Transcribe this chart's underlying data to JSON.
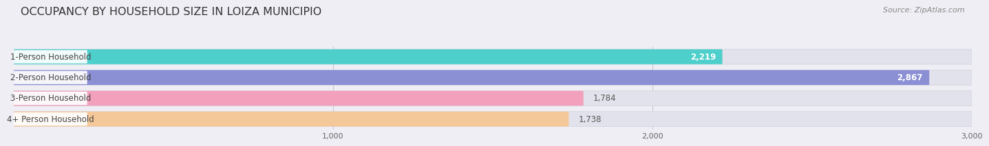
{
  "title": "OCCUPANCY BY HOUSEHOLD SIZE IN LOIZA MUNICIPIO",
  "source": "Source: ZipAtlas.com",
  "categories": [
    "1-Person Household",
    "2-Person Household",
    "3-Person Household",
    "4+ Person Household"
  ],
  "values": [
    2219,
    2867,
    1784,
    1738
  ],
  "bar_colors": [
    "#4ECFCB",
    "#8B8FD4",
    "#F2A0BB",
    "#F5C89A"
  ],
  "value_colors": [
    "#FFFFFF",
    "#FFFFFF",
    "#555555",
    "#555555"
  ],
  "xlim_max": 3000,
  "xticks": [
    1000,
    2000,
    3000
  ],
  "background_color": "#EEEEF4",
  "bar_bg_color": "#E2E2EC",
  "title_fontsize": 11.5,
  "source_fontsize": 8,
  "bar_label_fontsize": 8.5,
  "category_fontsize": 8.5,
  "bar_height": 0.72,
  "bar_gap": 0.28
}
